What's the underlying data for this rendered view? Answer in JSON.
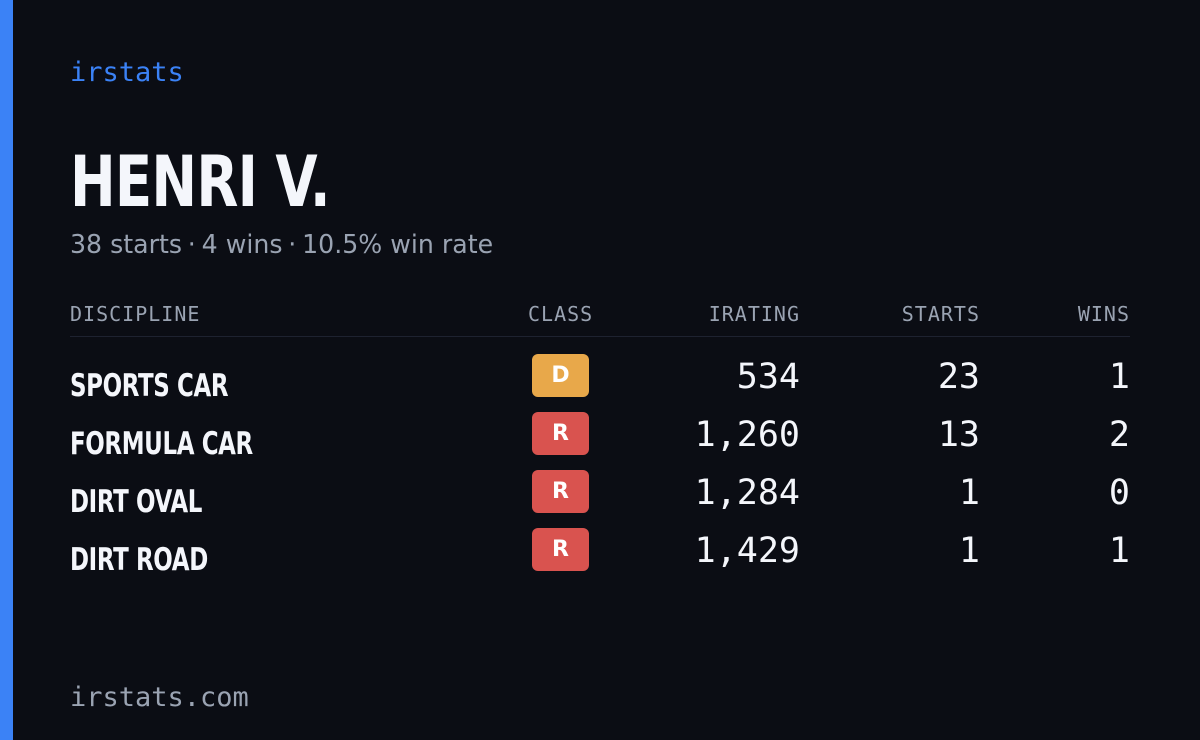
{
  "brand": "irstats",
  "driver": {
    "name": "HENRI V.",
    "starts_text": "38 starts",
    "wins_text": "4 wins",
    "win_rate_text": "10.5% win rate",
    "separator": "·"
  },
  "table": {
    "headers": {
      "discipline": "DISCIPLINE",
      "class": "CLASS",
      "irating": "IRATING",
      "starts": "STARTS",
      "wins": "WINS"
    },
    "rows": [
      {
        "discipline": "SPORTS CAR",
        "class": "D",
        "irating": "534",
        "starts": "23",
        "wins": "1"
      },
      {
        "discipline": "FORMULA CAR",
        "class": "R",
        "irating": "1,260",
        "starts": "13",
        "wins": "2"
      },
      {
        "discipline": "DIRT OVAL",
        "class": "R",
        "irating": "1,284",
        "starts": "1",
        "wins": "0"
      },
      {
        "discipline": "DIRT ROAD",
        "class": "R",
        "irating": "1,429",
        "starts": "1",
        "wins": "1"
      }
    ]
  },
  "colors": {
    "background": "#0b0d14",
    "accent": "#3b82f6",
    "class_d": "#e8a84a",
    "class_r": "#d9534f",
    "text_primary": "#f4f6fb",
    "text_muted": "#9aa3b2"
  },
  "footer": "irstats.com"
}
